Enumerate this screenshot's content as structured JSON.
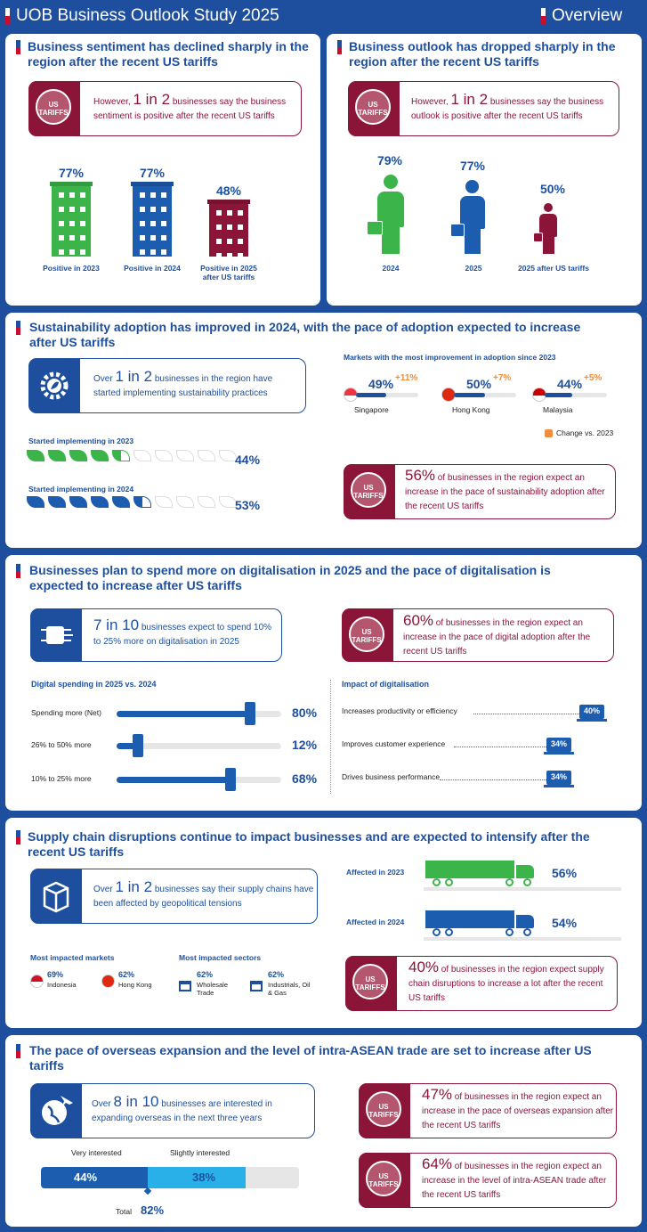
{
  "header": {
    "title": "UOB Business Outlook Study 2025",
    "overview": "Overview"
  },
  "sentiment": {
    "title": "Business sentiment has declined sharply in the region after the recent US tariffs",
    "callout_pre": "However, ",
    "callout_big": "1 in 2",
    "callout_post": " businesses say the business sentiment is positive after the recent US tariffs",
    "bars": [
      {
        "value": "77%",
        "label": "Positive in 2023",
        "color": "#3bb54a"
      },
      {
        "value": "77%",
        "label": "Positive in 2024",
        "color": "#1d5db0"
      },
      {
        "value": "48%",
        "label": "Positive in 2025 after US tariffs",
        "color": "#8b1538"
      }
    ]
  },
  "outlook": {
    "title": "Business outlook has dropped sharply in the region after the recent US tariffs",
    "callout_pre": "However, ",
    "callout_big": "1 in 2",
    "callout_post": " businesses say the business outlook is positive after the recent US tariffs",
    "figures": [
      {
        "value": "79%",
        "label": "2024",
        "color": "#3bb54a"
      },
      {
        "value": "77%",
        "label": "2025",
        "color": "#1d5db0"
      },
      {
        "value": "50%",
        "label": "2025 after US tariffs",
        "color": "#8b1538"
      }
    ]
  },
  "tariff_badge": "US TARIFFS",
  "sustain": {
    "title": "Sustainability adoption has improved in 2024, with the pace of adoption expected to increase after US tariffs",
    "callout_pre": "Over ",
    "callout_big": "1 in 2",
    "callout_post": " businesses in the region have started implementing sustainability practices",
    "markets_title": "Markets with the most improvement in adoption since 2023",
    "markets": [
      {
        "name": "Singapore",
        "value": "49%",
        "change": "+11%",
        "fill": 0.49
      },
      {
        "name": "Hong Kong",
        "value": "50%",
        "change": "+7%",
        "fill": 0.5
      },
      {
        "name": "Malaysia",
        "value": "44%",
        "change": "+5%",
        "fill": 0.44
      }
    ],
    "legend": "Change vs. 2023",
    "row2023_label": "Started implementing in 2023",
    "row2023_value": "44%",
    "row2023_fill": 0.44,
    "row2024_label": "Started implementing in 2024",
    "row2024_value": "53%",
    "row2024_fill": 0.53,
    "tariff_big": "56%",
    "tariff_text": " of businesses in the region expect an increase in the pace of sustainability adoption after the recent US tariffs"
  },
  "digital": {
    "title": "Businesses plan to spend more on digitalisation in 2025 and the pace of digitalisation is expected to increase after US tariffs",
    "callout_big": "7 in 10",
    "callout_text": " businesses expect to spend 10% to 25% more on digitalisation in 2025",
    "tariff_big": "60%",
    "tariff_text": " of businesses in the region expect an increase in the pace of digital adoption after the recent US tariffs",
    "spend_title": "Digital spending in 2025 vs. 2024",
    "spend": [
      {
        "label": "Spending more (Net)",
        "value": "80%",
        "fill": 0.8
      },
      {
        "label": "26% to 50% more",
        "value": "12%",
        "fill": 0.12
      },
      {
        "label": "10% to 25% more",
        "value": "68%",
        "fill": 0.68
      }
    ],
    "impact_title": "Impact of digitalisation",
    "impact": [
      {
        "label": "Increases productivity or efficiency",
        "value": "40%"
      },
      {
        "label": "Improves customer experience",
        "value": "34%"
      },
      {
        "label": "Drives business performance",
        "value": "34%"
      }
    ]
  },
  "supply": {
    "title": "Supply chain disruptions continue to impact businesses and are expected to intensify after the recent US tariffs",
    "callout_pre": "Over ",
    "callout_big": "1 in 2",
    "callout_post": " businesses say their supply chains have been affected by geopolitical tensions",
    "affected": [
      {
        "label": "Affected in 2023",
        "value": "56%",
        "color": "#3bb54a"
      },
      {
        "label": "Affected in 2024",
        "value": "54%",
        "color": "#1d5db0"
      }
    ],
    "markets_title": "Most impacted markets",
    "markets": [
      {
        "value": "69%",
        "name": "Indonesia"
      },
      {
        "value": "62%",
        "name": "Hong Kong"
      }
    ],
    "sectors_title": "Most impacted sectors",
    "sectors": [
      {
        "value": "62%",
        "name": "Wholesale Trade"
      },
      {
        "value": "62%",
        "name": "Industrials, Oil & Gas"
      }
    ],
    "tariff_big": "40%",
    "tariff_text": " of businesses in the region expect supply chain disruptions to increase a lot after the recent US tariffs"
  },
  "overseas": {
    "title": "The pace of overseas expansion and the level of intra-ASEAN trade are set to increase after US tariffs",
    "callout_pre": "Over ",
    "callout_big": "8 in 10",
    "callout_post": " businesses are interested in expanding overseas in the next three years",
    "very_label": "Very interested",
    "very_value": "44%",
    "slight_label": "Slightly interested",
    "slight_value": "38%",
    "total_label": "Total",
    "total_value": "82%",
    "tariff1_big": "47%",
    "tariff1_text": " of businesses in the region expect an increase in the pace of overseas expansion after the recent US tariffs",
    "tariff2_big": "64%",
    "tariff2_text": " of businesses in the region expect an increase in the level of intra-ASEAN trade after the recent US tariffs"
  }
}
